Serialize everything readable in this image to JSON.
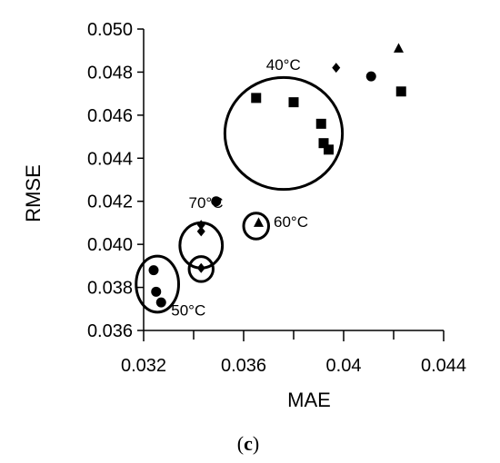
{
  "chart_data": {
    "type": "scatter",
    "panel_label": {
      "open": "(",
      "letter": "c",
      "close": ")"
    },
    "xlabel": "MAE",
    "ylabel": "RMSE",
    "xlim": [
      0.032,
      0.044
    ],
    "ylim": [
      0.036,
      0.05
    ],
    "x_ticks": [
      "0.032",
      "0.036",
      "0.04",
      "0.044"
    ],
    "x_tick_values": [
      0.032,
      0.036,
      0.04,
      0.044
    ],
    "x_minor_step": 0.002,
    "y_ticks": [
      "0.036",
      "0.038",
      "0.040",
      "0.042",
      "0.044",
      "0.046",
      "0.048",
      "0.050"
    ],
    "y_tick_values": [
      0.036,
      0.038,
      0.04,
      0.042,
      0.044,
      0.046,
      0.048,
      0.05
    ],
    "grid": false,
    "series": [
      {
        "marker": "square",
        "points": [
          {
            "x": 0.0365,
            "y": 0.0468
          },
          {
            "x": 0.038,
            "y": 0.0466
          },
          {
            "x": 0.0391,
            "y": 0.0456
          },
          {
            "x": 0.0392,
            "y": 0.0447
          },
          {
            "x": 0.0394,
            "y": 0.0444
          },
          {
            "x": 0.0423,
            "y": 0.0471
          }
        ]
      },
      {
        "marker": "circle",
        "points": [
          {
            "x": 0.0411,
            "y": 0.0478
          },
          {
            "x": 0.0349,
            "y": 0.042
          },
          {
            "x": 0.0324,
            "y": 0.0388
          },
          {
            "x": 0.0325,
            "y": 0.0378
          },
          {
            "x": 0.0327,
            "y": 0.0373
          }
        ]
      },
      {
        "marker": "diamond",
        "points": [
          {
            "x": 0.0397,
            "y": 0.0482
          },
          {
            "x": 0.0343,
            "y": 0.0409
          },
          {
            "x": 0.0343,
            "y": 0.0406
          },
          {
            "x": 0.0343,
            "y": 0.0389
          }
        ]
      },
      {
        "marker": "triangle",
        "points": [
          {
            "x": 0.0422,
            "y": 0.0491
          },
          {
            "x": 0.0366,
            "y": 0.041
          }
        ]
      }
    ],
    "groups": [
      {
        "label": "40°C",
        "cx": 0.0376,
        "cy": 0.04515,
        "rx": 0.00235,
        "ry": 0.0026,
        "label_x": 0.0369,
        "label_y": 0.0481
      },
      {
        "label": "60°C",
        "cx": 0.0365,
        "cy": 0.04085,
        "rx": 0.0005,
        "ry": 0.0006,
        "label_x": 0.0372,
        "label_y": 0.0408
      },
      {
        "label": "70°C",
        "cx": 0.0343,
        "cy": 0.03995,
        "rx": 0.00085,
        "ry": 0.00105,
        "label_x": 0.0338,
        "label_y": 0.0417
      },
      {
        "label": "50°C",
        "cx": 0.03255,
        "cy": 0.03815,
        "rx": 0.00085,
        "ry": 0.0013,
        "label_x": 0.0331,
        "label_y": 0.0367
      }
    ],
    "inner_circles": [
      {
        "cx": 0.0343,
        "cy": 0.03885,
        "rx": 0.00048,
        "ry": 0.00058
      }
    ]
  }
}
